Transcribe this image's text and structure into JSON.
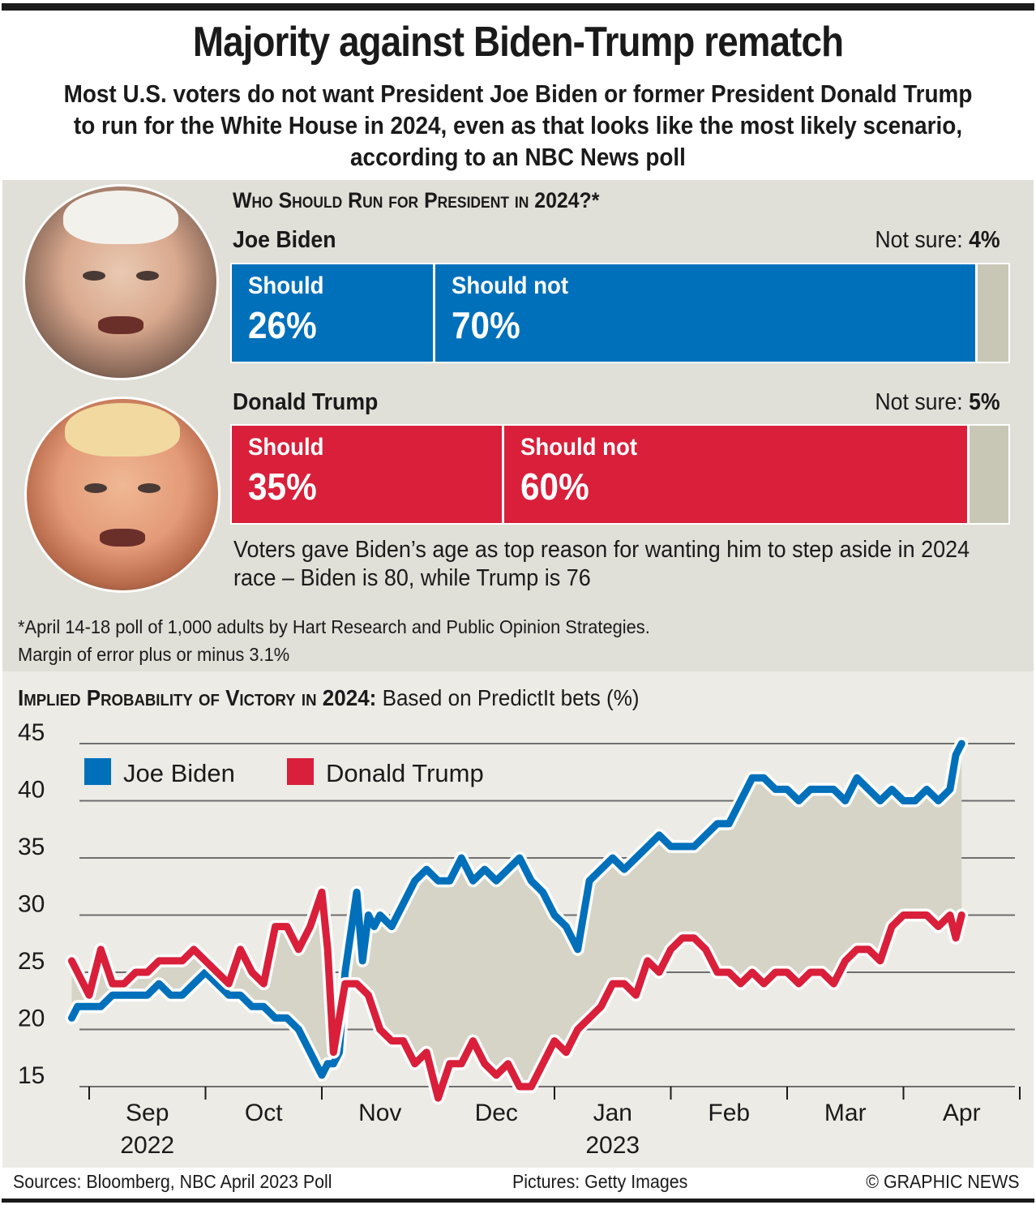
{
  "header": {
    "title": "Majority against Biden-Trump rematch",
    "subtitle": "Most U.S. voters do not want President Joe Biden or former President Donald Trump to run for the White House in 2024, even as that looks like the most likely scenario, according to an NBC News poll"
  },
  "poll": {
    "heading": "Who Should Run for President in 2024?*",
    "candidates": [
      {
        "name": "Joe Biden",
        "not_sure_label": "Not sure:",
        "not_sure_value": "4%",
        "should_label": "Should",
        "should_value": "26%",
        "should_not_label": "Should not",
        "should_not_value": "70%",
        "should_pct": 26,
        "should_not_pct": 70,
        "not_sure_pct": 4,
        "color": "#0070bb"
      },
      {
        "name": "Donald Trump",
        "not_sure_label": "Not sure:",
        "not_sure_value": "5%",
        "should_label": "Should",
        "should_value": "35%",
        "should_not_label": "Should not",
        "should_not_value": "60%",
        "should_pct": 35,
        "should_not_pct": 60,
        "not_sure_pct": 5,
        "color": "#d91f3a"
      }
    ],
    "note": "Voters gave Biden’s age as top reason for wanting him to step aside in 2024 race – Biden is 80, while Trump is 76",
    "footnote_line1": "*April 14-18 poll of 1,000 adults by Hart Research and Public Opinion Strategies.",
    "footnote_line2": "Margin of error plus or minus 3.1%"
  },
  "photos": {
    "biden": "Joe Biden portrait",
    "trump": "Donald Trump portrait"
  },
  "chart_data": {
    "type": "line",
    "title": "Implied Probability of Victory in 2024:",
    "subtitle": "Based on PredictIt bets (%)",
    "xlabel": "",
    "ylabel": "",
    "ylim": [
      15,
      45
    ],
    "yticks": [
      15,
      20,
      25,
      30,
      35,
      40,
      45
    ],
    "grid": true,
    "legend": "top-left",
    "x_range_months": [
      0,
      8.45
    ],
    "month_labels": [
      {
        "label": "Sep",
        "year": "2022"
      },
      {
        "label": "Oct",
        "year": ""
      },
      {
        "label": "Nov",
        "year": ""
      },
      {
        "label": "Dec",
        "year": ""
      },
      {
        "label": "Jan",
        "year": "2023"
      },
      {
        "label": "Feb",
        "year": ""
      },
      {
        "label": "Mar",
        "year": ""
      },
      {
        "label": "Apr",
        "year": ""
      }
    ],
    "series": [
      {
        "name": "Joe Biden",
        "color": "#0070bb",
        "x": [
          -0.15,
          -0.1,
          0.0,
          0.1,
          0.2,
          0.3,
          0.4,
          0.5,
          0.6,
          0.7,
          0.8,
          0.9,
          1.0,
          1.1,
          1.2,
          1.3,
          1.4,
          1.5,
          1.6,
          1.7,
          1.8,
          1.9,
          2.0,
          2.05,
          2.1,
          2.15,
          2.2,
          2.3,
          2.35,
          2.4,
          2.45,
          2.5,
          2.6,
          2.7,
          2.8,
          2.9,
          3.0,
          3.1,
          3.2,
          3.3,
          3.4,
          3.5,
          3.6,
          3.7,
          3.8,
          3.9,
          4.0,
          4.1,
          4.2,
          4.3,
          4.4,
          4.5,
          4.6,
          4.7,
          4.8,
          4.9,
          5.0,
          5.1,
          5.2,
          5.3,
          5.4,
          5.5,
          5.6,
          5.7,
          5.8,
          5.9,
          6.0,
          6.1,
          6.2,
          6.3,
          6.4,
          6.5,
          6.6,
          6.7,
          6.8,
          6.9,
          7.0,
          7.1,
          7.2,
          7.3,
          7.4,
          7.45,
          7.5
        ],
        "values": [
          21,
          22,
          22,
          22,
          23,
          23,
          23,
          23,
          24,
          23,
          23,
          24,
          25,
          24,
          23,
          23,
          22,
          22,
          21,
          21,
          20,
          18,
          16,
          17,
          17,
          18,
          25,
          32,
          26,
          30,
          29,
          30,
          29,
          31,
          33,
          34,
          33,
          33,
          35,
          33,
          34,
          33,
          34,
          35,
          33,
          32,
          30,
          29,
          27,
          33,
          34,
          35,
          34,
          35,
          36,
          37,
          36,
          36,
          36,
          37,
          38,
          38,
          40,
          42,
          42,
          41,
          41,
          40,
          41,
          41,
          41,
          40,
          42,
          41,
          40,
          41,
          40,
          40,
          41,
          40,
          41,
          44,
          45
        ]
      },
      {
        "name": "Donald Trump",
        "color": "#d91f3a",
        "x": [
          -0.15,
          -0.1,
          0.0,
          0.1,
          0.2,
          0.3,
          0.4,
          0.5,
          0.6,
          0.7,
          0.8,
          0.9,
          1.0,
          1.1,
          1.2,
          1.3,
          1.4,
          1.5,
          1.6,
          1.7,
          1.8,
          1.9,
          2.0,
          2.05,
          2.1,
          2.2,
          2.3,
          2.4,
          2.5,
          2.6,
          2.7,
          2.8,
          2.9,
          3.0,
          3.1,
          3.2,
          3.3,
          3.4,
          3.5,
          3.6,
          3.7,
          3.8,
          3.9,
          4.0,
          4.1,
          4.2,
          4.3,
          4.4,
          4.5,
          4.6,
          4.7,
          4.8,
          4.9,
          5.0,
          5.1,
          5.2,
          5.3,
          5.4,
          5.5,
          5.6,
          5.7,
          5.8,
          5.9,
          6.0,
          6.1,
          6.2,
          6.3,
          6.4,
          6.5,
          6.6,
          6.7,
          6.8,
          6.9,
          7.0,
          7.1,
          7.2,
          7.3,
          7.4,
          7.45,
          7.5
        ],
        "values": [
          26,
          25,
          23,
          27,
          24,
          24,
          25,
          25,
          26,
          26,
          26,
          27,
          26,
          25,
          24,
          27,
          25,
          24,
          29,
          29,
          27,
          29,
          32,
          27,
          18,
          24,
          24,
          23,
          20,
          19,
          19,
          17,
          18,
          14,
          17,
          17,
          19,
          17,
          16,
          17,
          15,
          15,
          17,
          19,
          18,
          20,
          21,
          22,
          24,
          24,
          23,
          26,
          25,
          27,
          28,
          28,
          27,
          25,
          25,
          24,
          25,
          24,
          25,
          25,
          24,
          25,
          25,
          24,
          26,
          27,
          27,
          26,
          29,
          30,
          30,
          30,
          29,
          30,
          28,
          30
        ]
      }
    ]
  },
  "footer": {
    "sources": "Sources: Bloomberg, NBC April 2023 Poll",
    "pictures": "Pictures: Getty Images",
    "copyright": "© GRAPHIC NEWS"
  }
}
